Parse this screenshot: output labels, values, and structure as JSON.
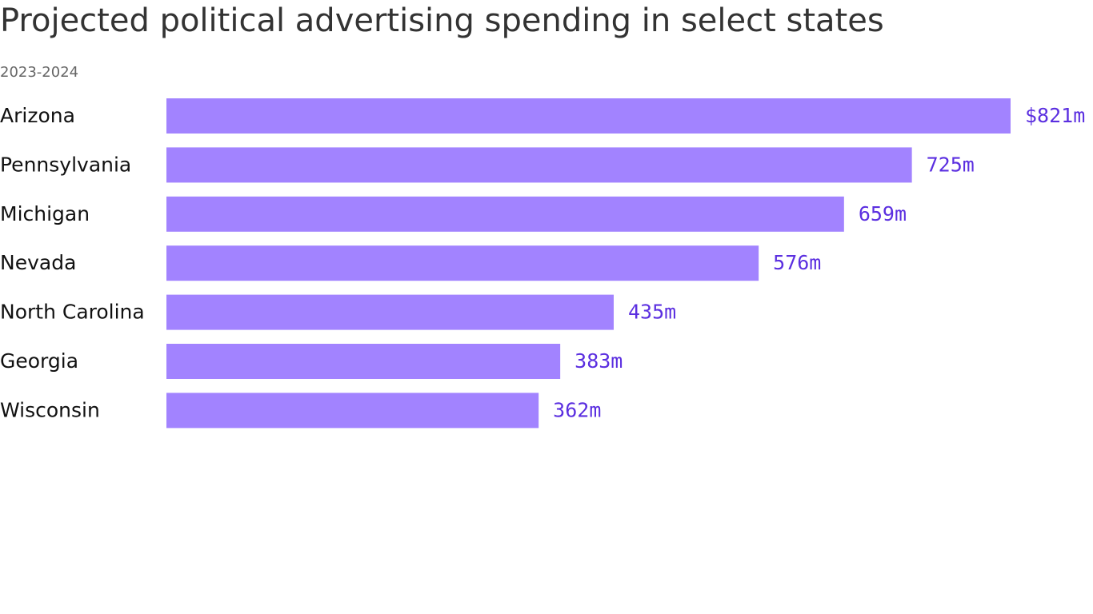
{
  "chart_data": {
    "type": "bar",
    "orientation": "horizontal",
    "title": "Projected political advertising spending in select states",
    "subtitle": "2023-2024",
    "categories": [
      "Arizona",
      "Pennsylvania",
      "Michigan",
      "Nevada",
      "North Carolina",
      "Georgia",
      "Wisconsin"
    ],
    "values": [
      821,
      725,
      659,
      576,
      435,
      383,
      362
    ],
    "value_labels": [
      "$821m",
      "725m",
      "659m",
      "576m",
      "435m",
      "383m",
      "362m"
    ],
    "color": "#a283ff"
  }
}
